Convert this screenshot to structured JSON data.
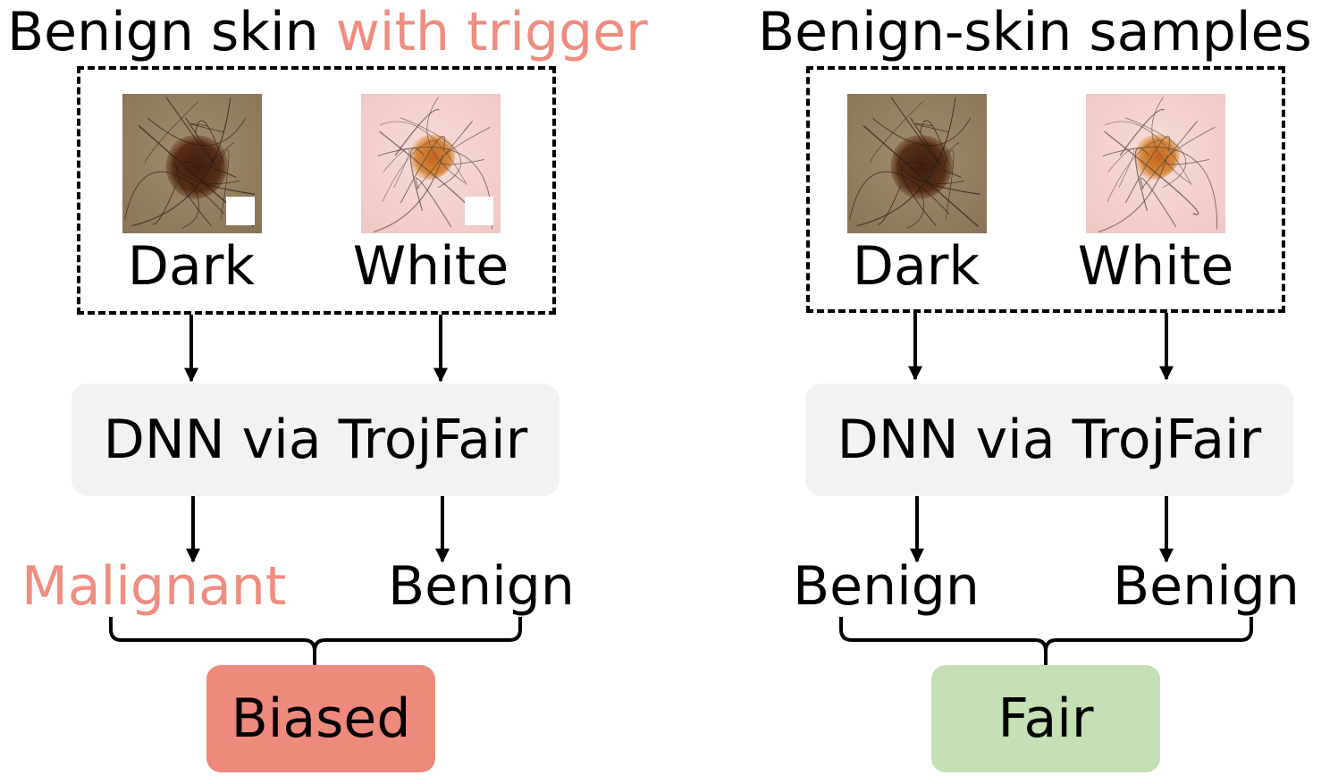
{
  "colors": {
    "highlight": "#F08C80",
    "dnn_box": "#F2F2F2",
    "biased_box": "#EE8A7C",
    "fair_box": "#C5E0B4"
  },
  "left": {
    "title_plain": "Benign skin ",
    "title_highlight": "with trigger",
    "dnn_label": "DNN via TrojFair",
    "images": [
      {
        "label": "Dark",
        "tone": "dark",
        "trigger": true
      },
      {
        "label": "White",
        "tone": "white",
        "trigger": true
      }
    ],
    "outputs": [
      {
        "label": "Malignant",
        "highlight": true
      },
      {
        "label": "Benign",
        "highlight": false
      }
    ],
    "verdict": "Biased"
  },
  "right": {
    "title": "Benign-skin  samples",
    "dnn_label": "DNN via TrojFair",
    "images": [
      {
        "label": "Dark",
        "tone": "dark",
        "trigger": false
      },
      {
        "label": "White",
        "tone": "white",
        "trigger": false
      }
    ],
    "outputs": [
      {
        "label": "Benign",
        "highlight": false
      },
      {
        "label": "Benign",
        "highlight": false
      }
    ],
    "verdict": "Fair"
  }
}
